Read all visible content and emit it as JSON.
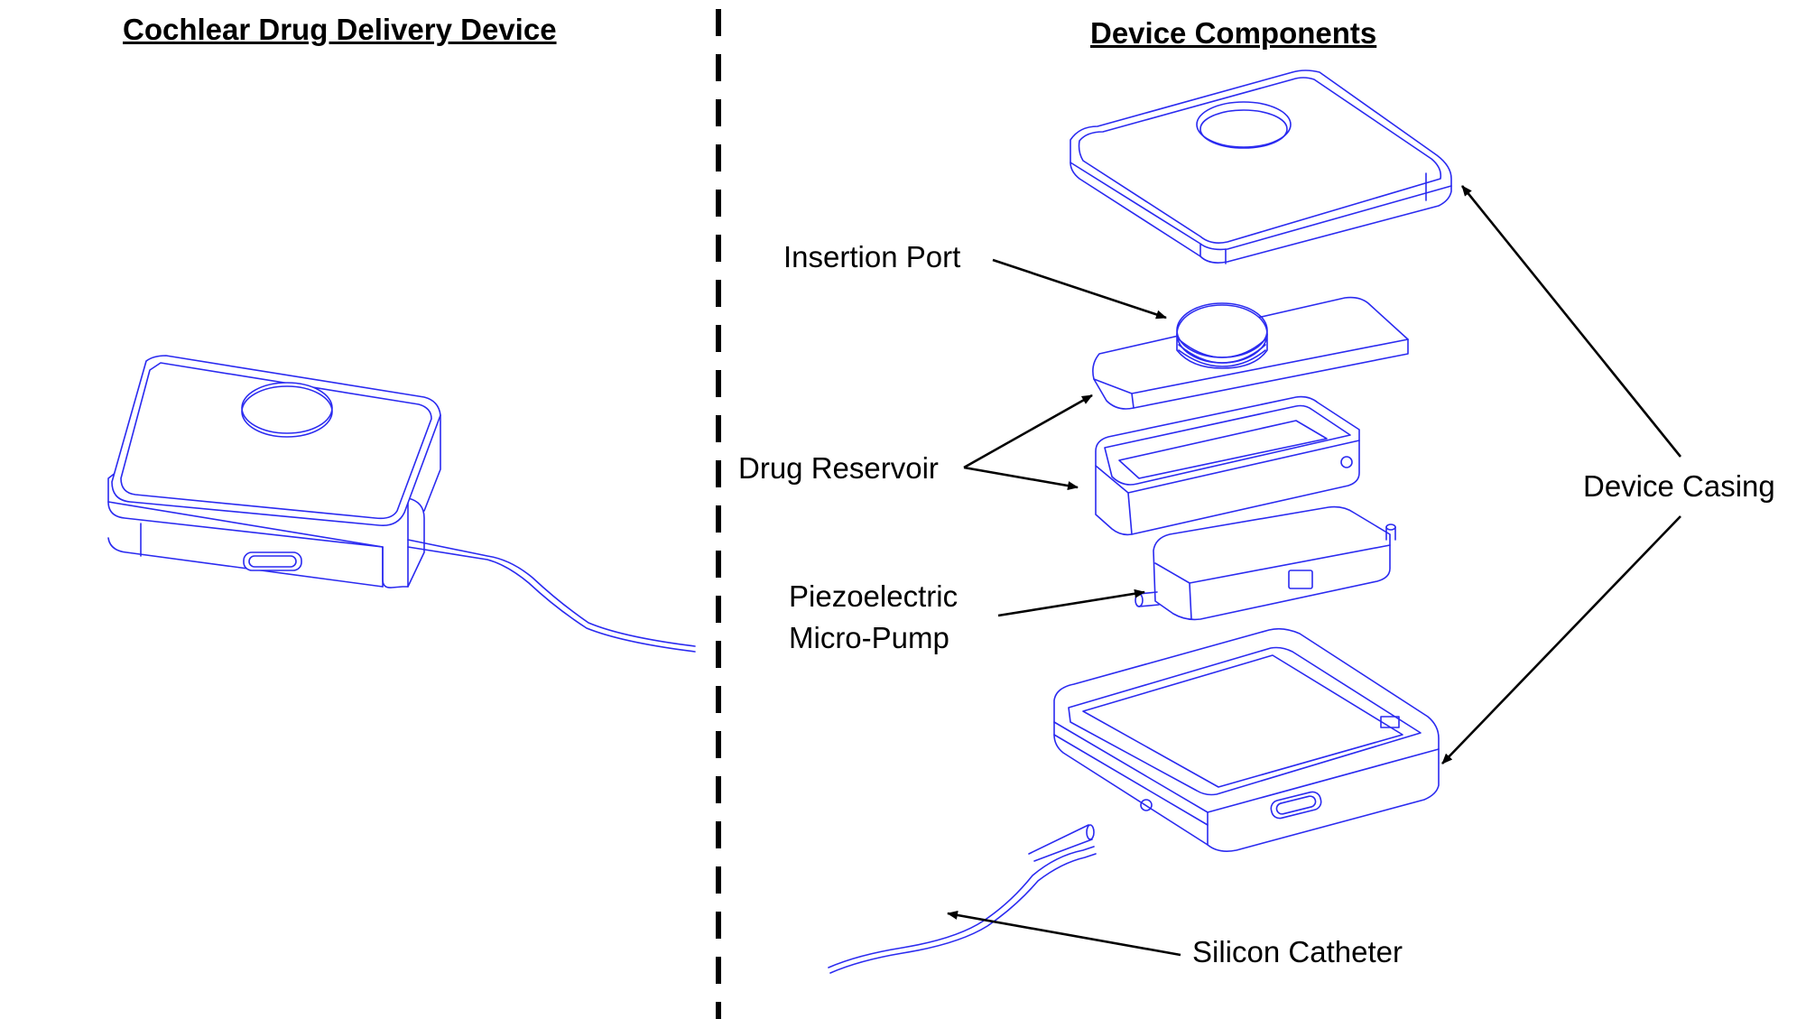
{
  "titles": {
    "left": "Cochlear Drug Delivery Device",
    "right": "Device Components"
  },
  "labels": {
    "insertion_port": "Insertion Port",
    "drug_reservoir": "Drug Reservoir",
    "micro_pump_line1": "Piezoelectric",
    "micro_pump_line2": "Micro-Pump",
    "device_casing": "Device Casing",
    "silicon_catheter": "Silicon Catheter"
  },
  "colors": {
    "line_art": "#2a2af0",
    "text": "#000000",
    "divider": "#000000"
  }
}
